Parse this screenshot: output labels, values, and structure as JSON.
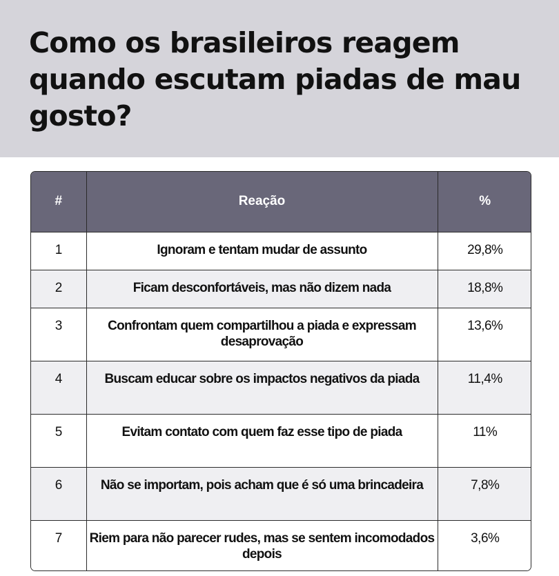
{
  "title": "Como os brasileiros reagem quando escutam piadas de mau gosto?",
  "table": {
    "headers": [
      "#",
      "Reação",
      "%"
    ],
    "rows": [
      {
        "num": "1",
        "reaction": "Ignoram e tentam mudar de assunto",
        "pct": "29,8%"
      },
      {
        "num": "2",
        "reaction": "Ficam desconfortáveis, mas não dizem nada",
        "pct": "18,8%"
      },
      {
        "num": "3",
        "reaction": "Confrontam quem compartilhou a piada e expressam desaprovação",
        "pct": "13,6%"
      },
      {
        "num": "4",
        "reaction": "Buscam educar sobre os impactos negativos da piada",
        "pct": "11,4%"
      },
      {
        "num": "5",
        "reaction": "Evitam contato com quem faz esse tipo de piada",
        "pct": "11%"
      },
      {
        "num": "6",
        "reaction": "Não se importam, pois acham que é só uma brincadeira",
        "pct": "7,8%"
      },
      {
        "num": "7",
        "reaction": "Riem para não parecer rudes, mas se sentem incomodados depois",
        "pct": "3,6%"
      }
    ]
  },
  "chart_data": {
    "type": "table",
    "title": "Como os brasileiros reagem quando escutam piadas de mau gosto?",
    "columns": [
      "#",
      "Reação",
      "%"
    ],
    "categories": [
      "Ignoram e tentam mudar de assunto",
      "Ficam desconfortáveis, mas não dizem nada",
      "Confrontam quem compartilhou a piada e expressam desaprovação",
      "Buscam educar sobre os impactos negativos da piada",
      "Evitam contato com quem faz esse tipo de piada",
      "Não se importam, pois acham que é só uma brincadeira",
      "Riem para não parecer rudes, mas se sentem incomodados depois"
    ],
    "values": [
      29.8,
      18.8,
      13.6,
      11.4,
      11,
      7.8,
      3.6
    ],
    "unit": "%"
  },
  "colors": {
    "header_band": "#d5d4da",
    "table_header": "#696779",
    "row_alt": "#efeff2"
  }
}
